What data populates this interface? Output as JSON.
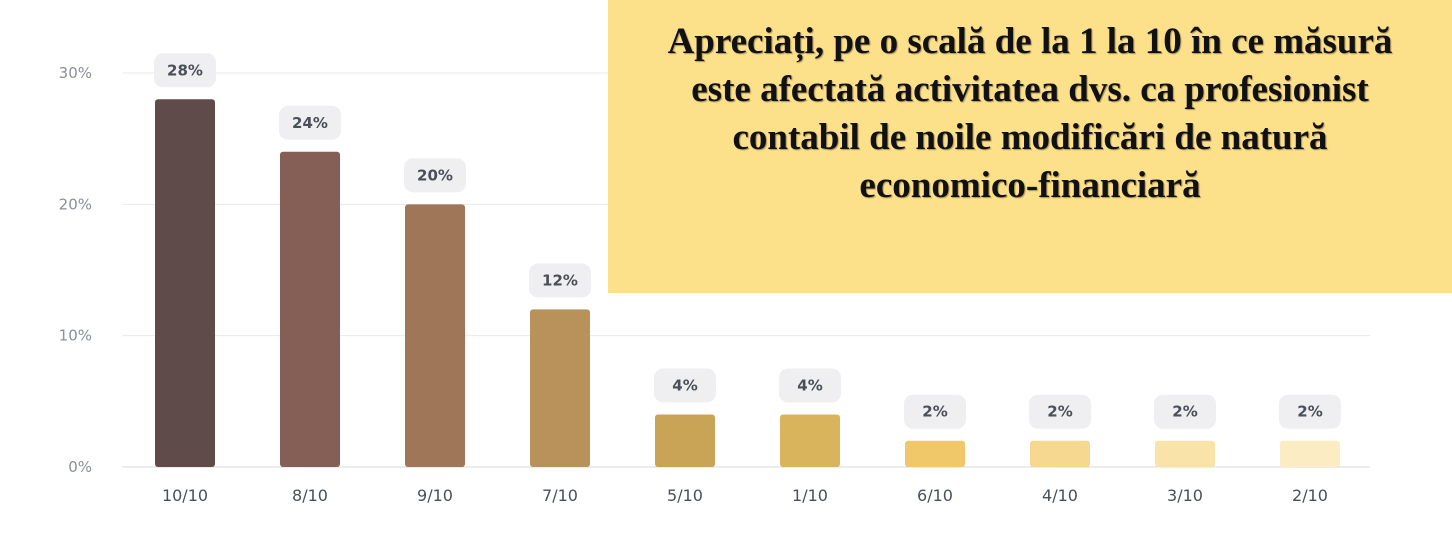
{
  "chart_data": {
    "type": "bar",
    "title": "Apreciați, pe o scală de la 1 la 10 în ce măsură este afectată activitatea dvs. ca profesionist contabil de noile modificări de natură economico-financiară",
    "categories": [
      "10/10",
      "8/10",
      "9/10",
      "7/10",
      "5/10",
      "1/10",
      "6/10",
      "4/10",
      "3/10",
      "2/10"
    ],
    "values": [
      28,
      24,
      20,
      12,
      4,
      4,
      2,
      2,
      2,
      2
    ],
    "data_labels": [
      "28%",
      "24%",
      "20%",
      "12%",
      "4%",
      "4%",
      "2%",
      "2%",
      "2%",
      "2%"
    ],
    "colors": [
      "#604b4b",
      "#855f55",
      "#9f7658",
      "#b8925a",
      "#c9a456",
      "#d9b45d",
      "#f0c86a",
      "#f6d890",
      "#f9e3a8",
      "#fcecc4"
    ],
    "ylim": [
      0,
      30
    ],
    "yticks": [
      0,
      10,
      20,
      30
    ],
    "ytick_labels": [
      "0%",
      "10%",
      "20%",
      "30%"
    ],
    "grid": true,
    "xlabel": "",
    "ylabel": ""
  }
}
